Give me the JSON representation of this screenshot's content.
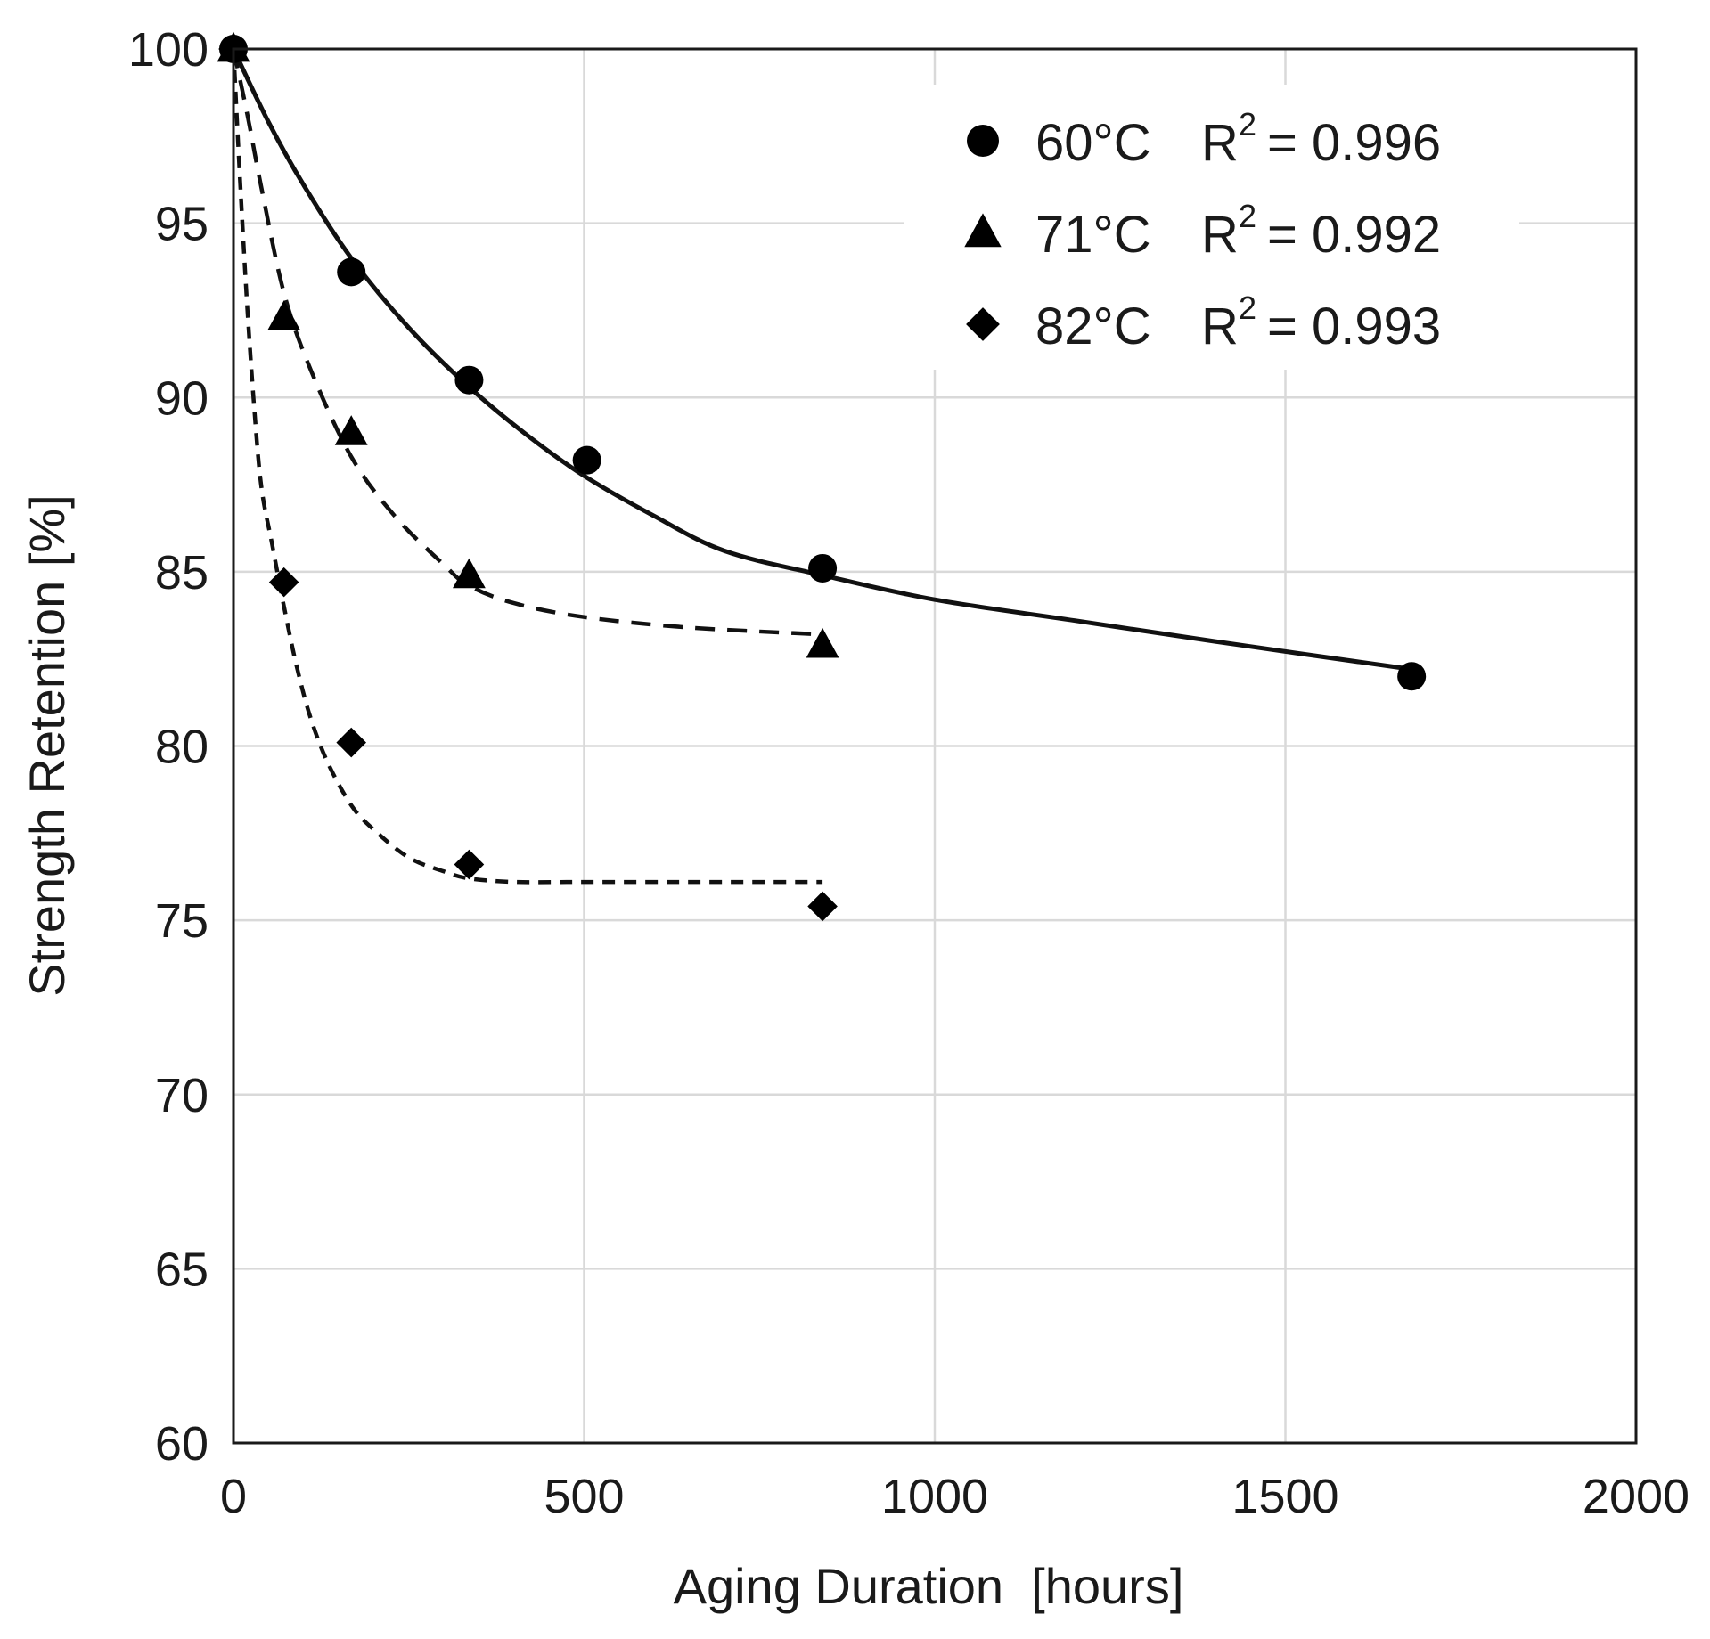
{
  "chart_data": {
    "type": "scatter",
    "title": "",
    "xlabel": "Aging Duration  [hours]",
    "ylabel": "Strength Retention [%]",
    "xlim": [
      0,
      2000
    ],
    "ylim": [
      60,
      100
    ],
    "xticks": [
      0,
      500,
      1000,
      1500,
      2000
    ],
    "yticks": [
      60,
      65,
      70,
      75,
      80,
      85,
      90,
      95,
      100
    ],
    "grid": true,
    "legend_position": "top-right",
    "series": [
      {
        "name": "60°C",
        "marker": "circle",
        "line_style": "solid",
        "r2_label": "R",
        "r2_value": "= 0.996",
        "x": [
          0,
          168,
          336,
          504,
          840,
          1680
        ],
        "y": [
          100,
          93.6,
          90.5,
          88.2,
          85.1,
          82.0
        ],
        "fit_x": [
          0,
          50,
          100,
          168,
          250,
          336,
          420,
          504,
          600,
          700,
          840,
          1000,
          1200,
          1400,
          1680
        ],
        "fit_y": [
          100,
          97.9,
          96.1,
          94.0,
          92.0,
          90.3,
          88.9,
          87.7,
          86.6,
          85.6,
          84.9,
          84.2,
          83.6,
          83.0,
          82.2
        ]
      },
      {
        "name": "71°C",
        "marker": "triangle",
        "line_style": "dashed",
        "r2_label": "R",
        "r2_value": "= 0.992",
        "x": [
          0,
          72,
          168,
          336,
          840
        ],
        "y": [
          100,
          92.3,
          89.0,
          84.9,
          82.9
        ],
        "fit_x": [
          0,
          20,
          40,
          72,
          110,
          168,
          230,
          300,
          336,
          400,
          500,
          650,
          840
        ],
        "fit_y": [
          100,
          98.1,
          96.0,
          93.0,
          90.8,
          88.3,
          86.6,
          85.2,
          84.6,
          84.1,
          83.7,
          83.4,
          83.2
        ]
      },
      {
        "name": "82°C",
        "marker": "diamond",
        "line_style": "dashed",
        "r2_label": "R",
        "r2_value": "= 0.993",
        "x": [
          0,
          72,
          168,
          336,
          840
        ],
        "y": [
          100,
          84.7,
          80.1,
          76.6,
          75.4
        ],
        "fit_x": [
          0,
          10,
          20,
          30,
          40,
          55,
          72,
          90,
          110,
          135,
          168,
          200,
          250,
          300,
          336,
          400,
          500,
          650,
          840
        ],
        "fit_y": [
          100,
          96.0,
          92.5,
          89.6,
          87.4,
          85.8,
          84.0,
          82.3,
          80.8,
          79.5,
          78.3,
          77.6,
          76.8,
          76.4,
          76.2,
          76.1,
          76.1,
          76.1,
          76.1
        ]
      }
    ]
  }
}
